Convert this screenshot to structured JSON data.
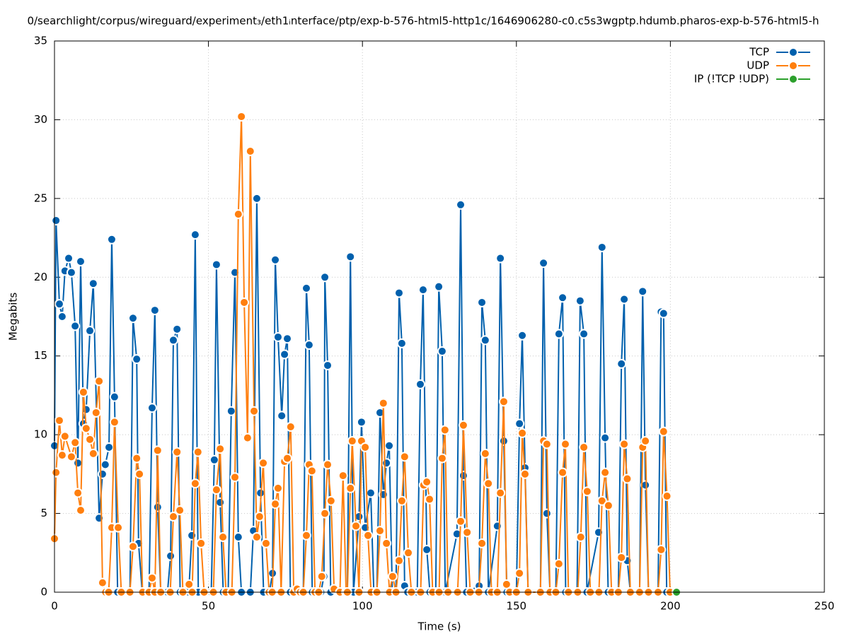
{
  "chart_data": {
    "type": "line",
    "title": "0/searchlight/corpus/wireguard/experiment₃/eth1ᵢnterface/ptp/exp-b-576-html5-http1c/1646906280-c0.c5s3wgptp.hdumb.pharos-exp-b-576-html5-h",
    "x_label": "Time (s)",
    "y_label": "Megabits",
    "xlim": [
      0,
      250
    ],
    "xticks": [
      0,
      50,
      100,
      150,
      200,
      250
    ],
    "ylim": [
      0,
      35
    ],
    "yticks": [
      0,
      5,
      10,
      15,
      20,
      25,
      30,
      35
    ],
    "grid": true,
    "legend": "top-right",
    "series": [
      {
        "name": "TCP",
        "color": "#0060ad",
        "x": [
          0,
          0.5,
          1.6,
          2.5,
          3.4,
          4.6,
          5.5,
          6.7,
          7.6,
          8.5,
          9.4,
          10.3,
          11.5,
          12.6,
          14.5,
          15.6,
          16.5,
          17.7,
          18.6,
          19.5,
          20.5,
          24.5,
          25.5,
          26.7,
          27.3,
          28.5,
          30.7,
          31.7,
          32.6,
          33.5,
          34.5,
          36.7,
          37.7,
          38.6,
          39.8,
          40.8,
          43.6,
          44.6,
          45.7,
          46.7,
          50.9,
          51.9,
          52.6,
          53.8,
          54.8,
          56.4,
          57.4,
          58.6,
          59.7,
          60.7,
          63.6,
          64.6,
          65.7,
          66.9,
          67.9,
          69.8,
          70.8,
          71.7,
          72.6,
          73.8,
          74.7,
          75.6,
          76.6,
          80.8,
          81.8,
          82.7,
          83.7,
          86.5,
          87.5,
          87.8,
          88.7,
          89.7,
          95.1,
          96.1,
          97.1,
          98.9,
          99.7,
          100.9,
          102.7,
          103.7,
          104.7,
          105.7,
          106.8,
          107.8,
          108.7,
          109.7,
          110.9,
          111.9,
          112.8,
          113.7,
          114.7,
          117.8,
          118.8,
          119.7,
          120.9,
          121.9,
          123.8,
          124.8,
          125.9,
          126.9,
          130.7,
          131.9,
          132.8,
          133.8,
          137.9,
          138.8,
          139.9,
          140.9,
          143.8,
          144.8,
          145.9,
          146.9,
          150.0,
          151.0,
          151.9,
          152.8,
          153.8,
          157.8,
          158.8,
          159.9,
          160.9,
          162.8,
          163.8,
          165.0,
          166.0,
          169.7,
          170.7,
          171.9,
          172.9,
          176.7,
          177.8,
          178.8,
          179.8,
          183.1,
          184.1,
          185.0,
          186.0,
          187.0,
          190.0,
          191.0,
          191.9,
          192.9,
          196.0,
          197.0,
          197.8,
          198.8
        ],
        "values": [
          9.3,
          23.6,
          18.3,
          17.5,
          20.4,
          21.2,
          20.3,
          16.9,
          8.2,
          21.0,
          10.7,
          11.6,
          16.6,
          19.6,
          4.7,
          7.5,
          8.1,
          9.2,
          22.4,
          12.4,
          0,
          0,
          17.4,
          14.8,
          3.1,
          0,
          0,
          11.7,
          17.9,
          5.4,
          0,
          0,
          2.3,
          16.0,
          16.7,
          0,
          0,
          3.6,
          22.7,
          0,
          0,
          8.4,
          20.8,
          5.7,
          0,
          0,
          11.5,
          20.3,
          3.5,
          0,
          0,
          3.9,
          25.0,
          6.3,
          0,
          0,
          1.2,
          21.1,
          16.2,
          11.2,
          15.1,
          16.1,
          0,
          0,
          19.3,
          15.7,
          0,
          0,
          1.0,
          20.0,
          14.4,
          0,
          0,
          21.3,
          0,
          4.8,
          10.8,
          4.1,
          6.3,
          0,
          0,
          11.4,
          6.2,
          8.2,
          9.3,
          0,
          0,
          19.0,
          15.8,
          0.4,
          0,
          0,
          13.2,
          19.2,
          2.7,
          0,
          0,
          19.4,
          15.3,
          0,
          3.7,
          24.6,
          7.4,
          0,
          0.4,
          18.4,
          16.0,
          0,
          4.2,
          21.2,
          9.6,
          0,
          0,
          10.7,
          16.3,
          7.9,
          0,
          0,
          20.9,
          5.0,
          0,
          0,
          16.4,
          18.7,
          0,
          0,
          18.5,
          16.4,
          0,
          3.8,
          21.9,
          9.8,
          0,
          0,
          14.5,
          18.6,
          2.0,
          0,
          0,
          19.1,
          6.8,
          0,
          0,
          17.8,
          17.7,
          0
        ]
      },
      {
        "name": "UDP",
        "color": "#ff7f0e",
        "x": [
          0,
          0.5,
          1.6,
          2.5,
          3.4,
          5.5,
          6.7,
          7.6,
          8.5,
          9.4,
          10.3,
          11.5,
          12.6,
          13.5,
          14.5,
          15.6,
          16.6,
          17.6,
          18.6,
          19.5,
          20.7,
          21.7,
          24.5,
          25.5,
          26.7,
          27.6,
          28.6,
          30.7,
          31.7,
          32.6,
          33.5,
          34.5,
          37.6,
          38.6,
          39.8,
          40.7,
          41.7,
          43.7,
          44.7,
          45.7,
          46.6,
          47.6,
          48.6,
          51.6,
          52.6,
          53.8,
          54.7,
          55.7,
          57.6,
          58.6,
          59.7,
          60.7,
          61.6,
          62.7,
          63.6,
          64.8,
          65.7,
          66.6,
          67.8,
          68.7,
          69.7,
          70.7,
          71.7,
          72.6,
          73.6,
          74.7,
          75.6,
          76.7,
          77.7,
          78.8,
          79.8,
          80.8,
          81.8,
          82.7,
          83.6,
          84.6,
          85.8,
          86.8,
          87.8,
          88.7,
          89.8,
          90.8,
          92.7,
          93.7,
          94.7,
          95.1,
          96.1,
          96.7,
          97.9,
          98.9,
          99.7,
          100.9,
          101.8,
          102.8,
          104.7,
          105.7,
          106.8,
          107.8,
          108.8,
          109.8,
          110.9,
          111.9,
          112.8,
          113.7,
          114.9,
          115.9,
          118.9,
          119.9,
          120.9,
          121.8,
          122.8,
          124.9,
          125.9,
          126.8,
          127.8,
          130.9,
          131.9,
          132.8,
          134.0,
          135.0,
          137.8,
          138.8,
          139.9,
          140.9,
          141.9,
          143.8,
          144.8,
          145.9,
          146.8,
          147.8,
          150.0,
          151.0,
          151.9,
          152.8,
          153.8,
          157.8,
          158.8,
          159.9,
          160.9,
          162.8,
          163.8,
          165.0,
          165.9,
          166.9,
          169.9,
          170.9,
          171.9,
          173.0,
          174.0,
          176.8,
          177.8,
          178.8,
          179.9,
          180.9,
          183.1,
          184.1,
          185.0,
          186.0,
          187.0,
          190.0,
          191.0,
          191.9,
          192.9,
          196.0,
          197.0,
          197.8,
          198.9,
          199.9
        ],
        "values": [
          3.4,
          7.6,
          10.9,
          8.7,
          9.9,
          8.6,
          9.5,
          6.3,
          5.2,
          12.7,
          10.4,
          9.7,
          8.8,
          11.4,
          13.4,
          0.6,
          0,
          0,
          4.1,
          10.8,
          4.1,
          0,
          0,
          2.9,
          8.5,
          7.5,
          0,
          0,
          0.9,
          0,
          9.0,
          0,
          0,
          4.8,
          8.9,
          5.2,
          0,
          0.5,
          0,
          6.9,
          8.9,
          3.1,
          0,
          0,
          6.5,
          9.1,
          3.5,
          0,
          0,
          7.3,
          24.0,
          30.2,
          18.4,
          9.8,
          28.0,
          11.5,
          3.5,
          4.8,
          8.2,
          3.1,
          0,
          0,
          5.6,
          6.6,
          0,
          8.3,
          8.5,
          10.5,
          0,
          0.2,
          0,
          0,
          3.6,
          8.1,
          7.7,
          0,
          0,
          1.0,
          5.0,
          8.1,
          5.8,
          0.2,
          0,
          7.4,
          0,
          0,
          6.6,
          9.6,
          4.2,
          0,
          9.6,
          9.2,
          3.6,
          0,
          0,
          3.9,
          12.0,
          3.1,
          0,
          1.0,
          0,
          2.0,
          5.8,
          8.6,
          2.5,
          0,
          0,
          6.8,
          7.0,
          5.9,
          0,
          0,
          8.5,
          10.3,
          0,
          0,
          4.5,
          10.6,
          3.8,
          0,
          0,
          3.1,
          8.8,
          6.9,
          0,
          0,
          6.3,
          12.1,
          0.5,
          0,
          0,
          1.2,
          10.1,
          7.5,
          0,
          0,
          9.6,
          9.4,
          0,
          0,
          1.8,
          7.6,
          9.4,
          0,
          0,
          3.5,
          9.2,
          6.4,
          0,
          0,
          5.8,
          7.6,
          5.5,
          0,
          0,
          2.2,
          9.4,
          7.2,
          0,
          0,
          9.2,
          9.6,
          0,
          0,
          2.7,
          10.2,
          6.1,
          0
        ]
      },
      {
        "name": "IP (!TCP  !UDP)",
        "color": "#2ca02c",
        "x": [
          202
        ],
        "values": [
          0
        ]
      }
    ]
  }
}
